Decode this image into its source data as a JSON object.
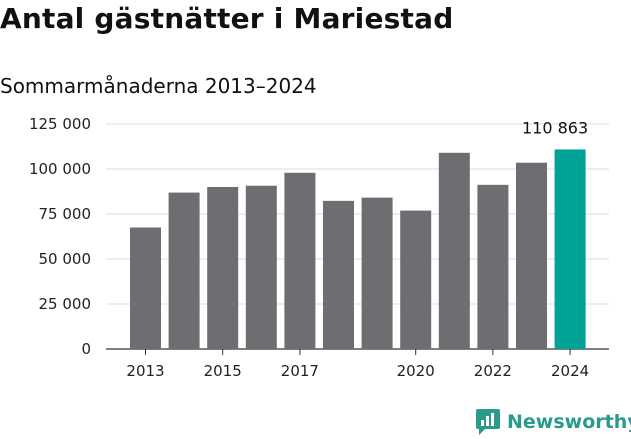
{
  "title": "Antal gästnätter i Mariestad",
  "subtitle": "Sommarmånaderna 2013–2024",
  "brand": {
    "name": "Newsworthy",
    "icon": "newsworthy-logo-icon"
  },
  "colors": {
    "bar": "#6e6d72",
    "highlight": "#00a196",
    "brand": "#2a9a8c",
    "grid": "#dcdcdc"
  },
  "chart_data": {
    "type": "bar",
    "categories": [
      "2013",
      "2014",
      "2015",
      "2016",
      "2017",
      "2018",
      "2019",
      "2020",
      "2021",
      "2022",
      "2023",
      "2024"
    ],
    "x_tick_labels": [
      "2013",
      "2015",
      "2017",
      "2020",
      "2022",
      "2024"
    ],
    "values": [
      67500,
      86900,
      90000,
      90700,
      97900,
      82300,
      84100,
      76900,
      109000,
      91200,
      103500,
      110863
    ],
    "ylim": [
      0,
      125000
    ],
    "y_ticks": [
      0,
      25000,
      50000,
      75000,
      100000,
      125000
    ],
    "y_tick_labels": [
      "0",
      "25 000",
      "50 000",
      "75 000",
      "100 000",
      "125 000"
    ],
    "highlight_index": 11,
    "data_labels": [
      {
        "index": 11,
        "text": "110 863"
      }
    ],
    "grid": true,
    "legend": "none"
  }
}
